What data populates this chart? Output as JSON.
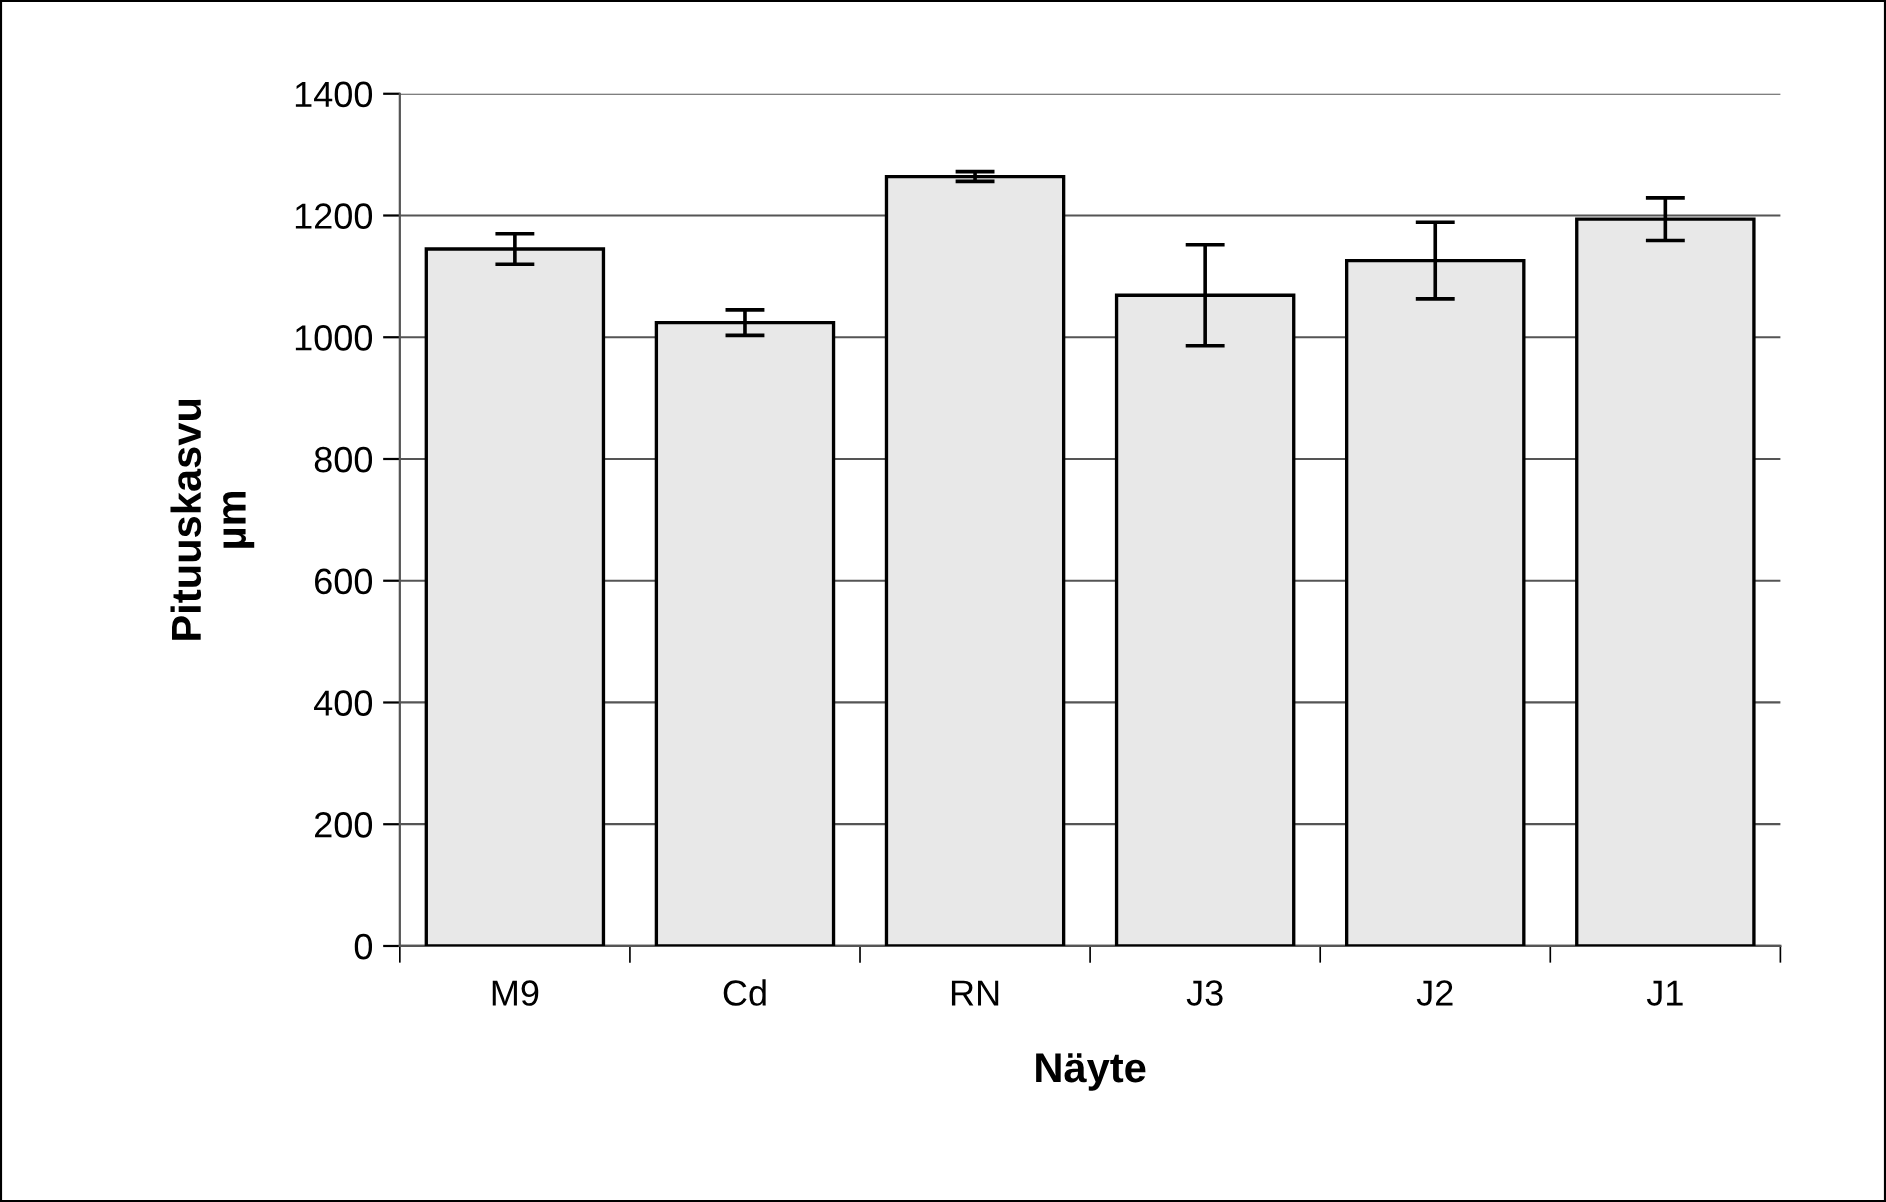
{
  "chart_data": {
    "type": "bar",
    "xlabel": "Näyte",
    "ylabel": "Pituuskasvu\nµm",
    "categories": [
      "M9",
      "Cd",
      "RN",
      "J3",
      "J2",
      "J1"
    ],
    "values": [
      1145,
      1024,
      1264,
      1069,
      1126,
      1194
    ],
    "errors": [
      25,
      21,
      8,
      83,
      63,
      35
    ],
    "color": "#e8e8e8",
    "ylim": [
      0,
      1400
    ],
    "yticks": [
      0,
      200,
      400,
      600,
      800,
      1000,
      1200,
      1400
    ],
    "grid": "y"
  }
}
